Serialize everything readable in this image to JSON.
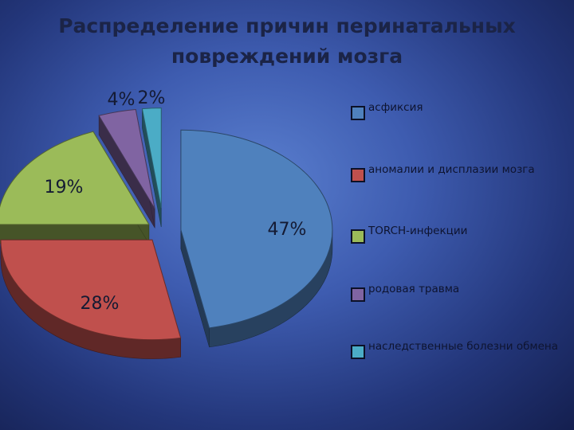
{
  "chart_data": {
    "type": "pie",
    "title": "Распределение причин перинатальных повреждений мозга",
    "title_lines": [
      "Распределение причин перинатальных",
      "повреждений мозга"
    ],
    "categories": [
      "асфиксия",
      "аномалии и дисплазии мозга",
      "TORCH-инфекции",
      "родовая травма",
      "наследственные болезни обмена"
    ],
    "values": [
      47,
      28,
      19,
      4,
      2
    ],
    "value_labels": [
      "47%",
      "28%",
      "19%",
      "4%",
      "2%"
    ],
    "colors": [
      "#4f81bd",
      "#c0504d",
      "#9bbb59",
      "#8064a2",
      "#4bacc6"
    ],
    "legend_position": "right",
    "legend_text_color": "#0e1430"
  }
}
